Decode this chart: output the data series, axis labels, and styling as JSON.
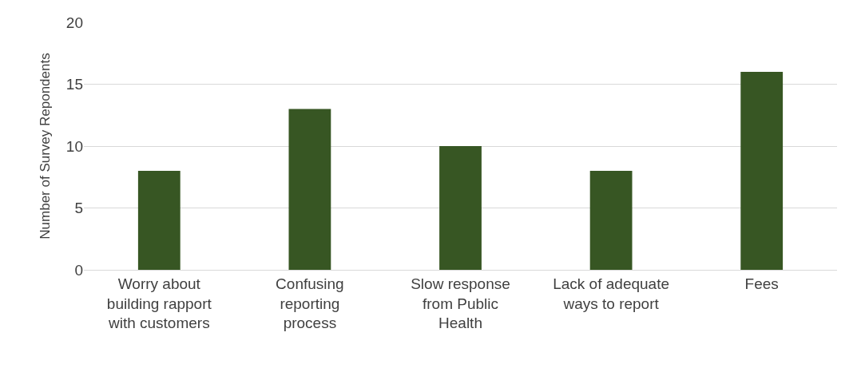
{
  "chart_data": {
    "type": "bar",
    "ylabel": "Number of Survey Repondents",
    "categories": [
      "Worry about building rapport with customers",
      "Confusing reporting process",
      "Slow response from Public Health",
      "Lack of adequate ways to report",
      "Fees"
    ],
    "values": [
      8,
      13,
      10,
      8,
      16
    ],
    "color": "#375623",
    "ylim": [
      0,
      20
    ],
    "yticks": [
      0,
      5,
      10,
      15,
      20
    ],
    "grid": "y",
    "legend": false
  }
}
